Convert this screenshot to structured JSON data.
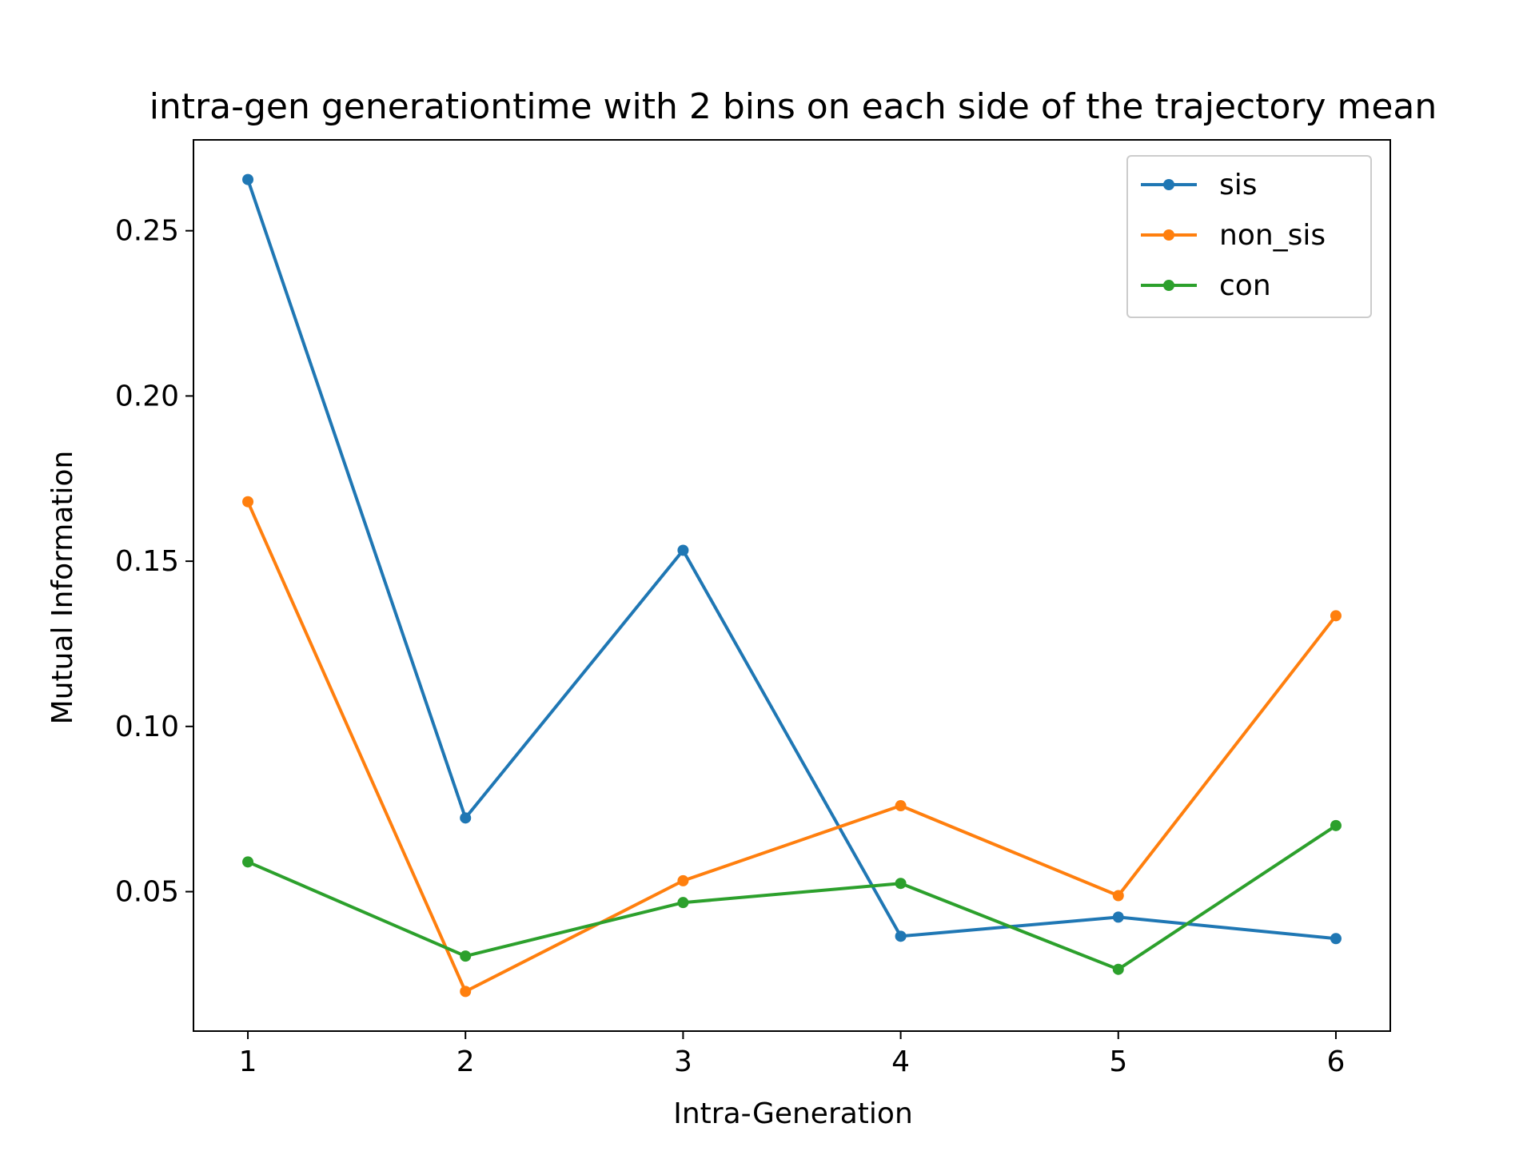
{
  "chart_data": {
    "type": "line",
    "title": "intra-gen generationtime with 2 bins on each side of the trajectory mean",
    "xlabel": "Intra-Generation",
    "ylabel": "Mutual Information",
    "x": [
      1,
      2,
      3,
      4,
      5,
      6
    ],
    "x_ticks": [
      "1",
      "2",
      "3",
      "4",
      "5",
      "6"
    ],
    "y_ticks": [
      "0.05",
      "0.10",
      "0.15",
      "0.20",
      "0.25"
    ],
    "xlim": [
      0.75,
      6.25
    ],
    "ylim": [
      0.0078,
      0.2775
    ],
    "grid": false,
    "legend_position": "upper right",
    "series": [
      {
        "name": "sis",
        "color": "#1f77b4",
        "values": [
          0.2655,
          0.0723,
          0.1533,
          0.0365,
          0.0423,
          0.0358
        ]
      },
      {
        "name": "non_sis",
        "color": "#ff7f0e",
        "values": [
          0.168,
          0.0198,
          0.0533,
          0.076,
          0.0488,
          0.1335
        ]
      },
      {
        "name": "con",
        "color": "#2ca02c",
        "values": [
          0.059,
          0.0305,
          0.0467,
          0.0525,
          0.0265,
          0.07
        ]
      }
    ]
  }
}
